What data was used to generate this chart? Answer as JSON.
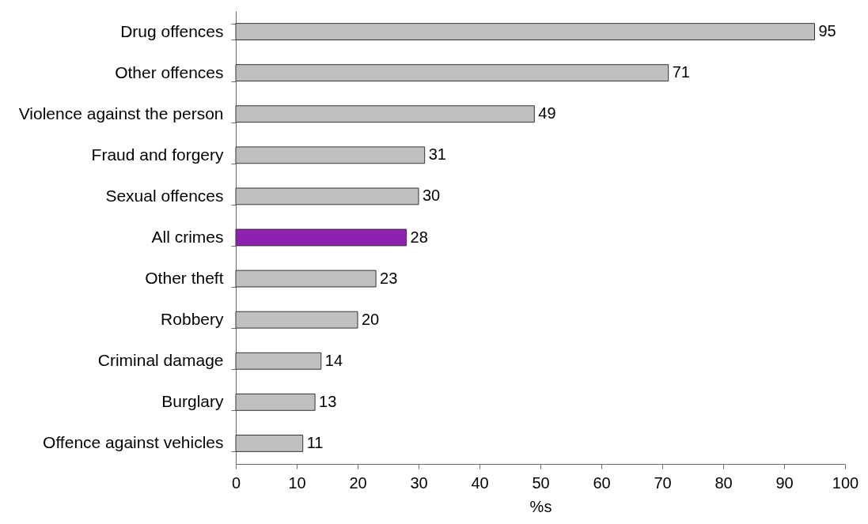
{
  "chart_data": {
    "type": "bar",
    "orientation": "horizontal",
    "categories": [
      "Drug offences",
      "Other offences",
      "Violence against the person",
      "Fraud and forgery",
      "Sexual offences",
      "All crimes",
      "Other theft",
      "Robbery",
      "Criminal damage",
      "Burglary",
      "Offence against vehicles"
    ],
    "values": [
      95,
      71,
      49,
      31,
      30,
      28,
      23,
      20,
      14,
      13,
      11
    ],
    "colors": [
      "#c0c0c0",
      "#c0c0c0",
      "#c0c0c0",
      "#c0c0c0",
      "#c0c0c0",
      "#8e22b0",
      "#c0c0c0",
      "#c0c0c0",
      "#c0c0c0",
      "#c0c0c0",
      "#c0c0c0"
    ],
    "xlabel": "%s",
    "xlim": [
      0,
      100
    ],
    "xticks": [
      0,
      10,
      20,
      30,
      40,
      50,
      60,
      70,
      80,
      90,
      100
    ],
    "data_labels": true
  }
}
